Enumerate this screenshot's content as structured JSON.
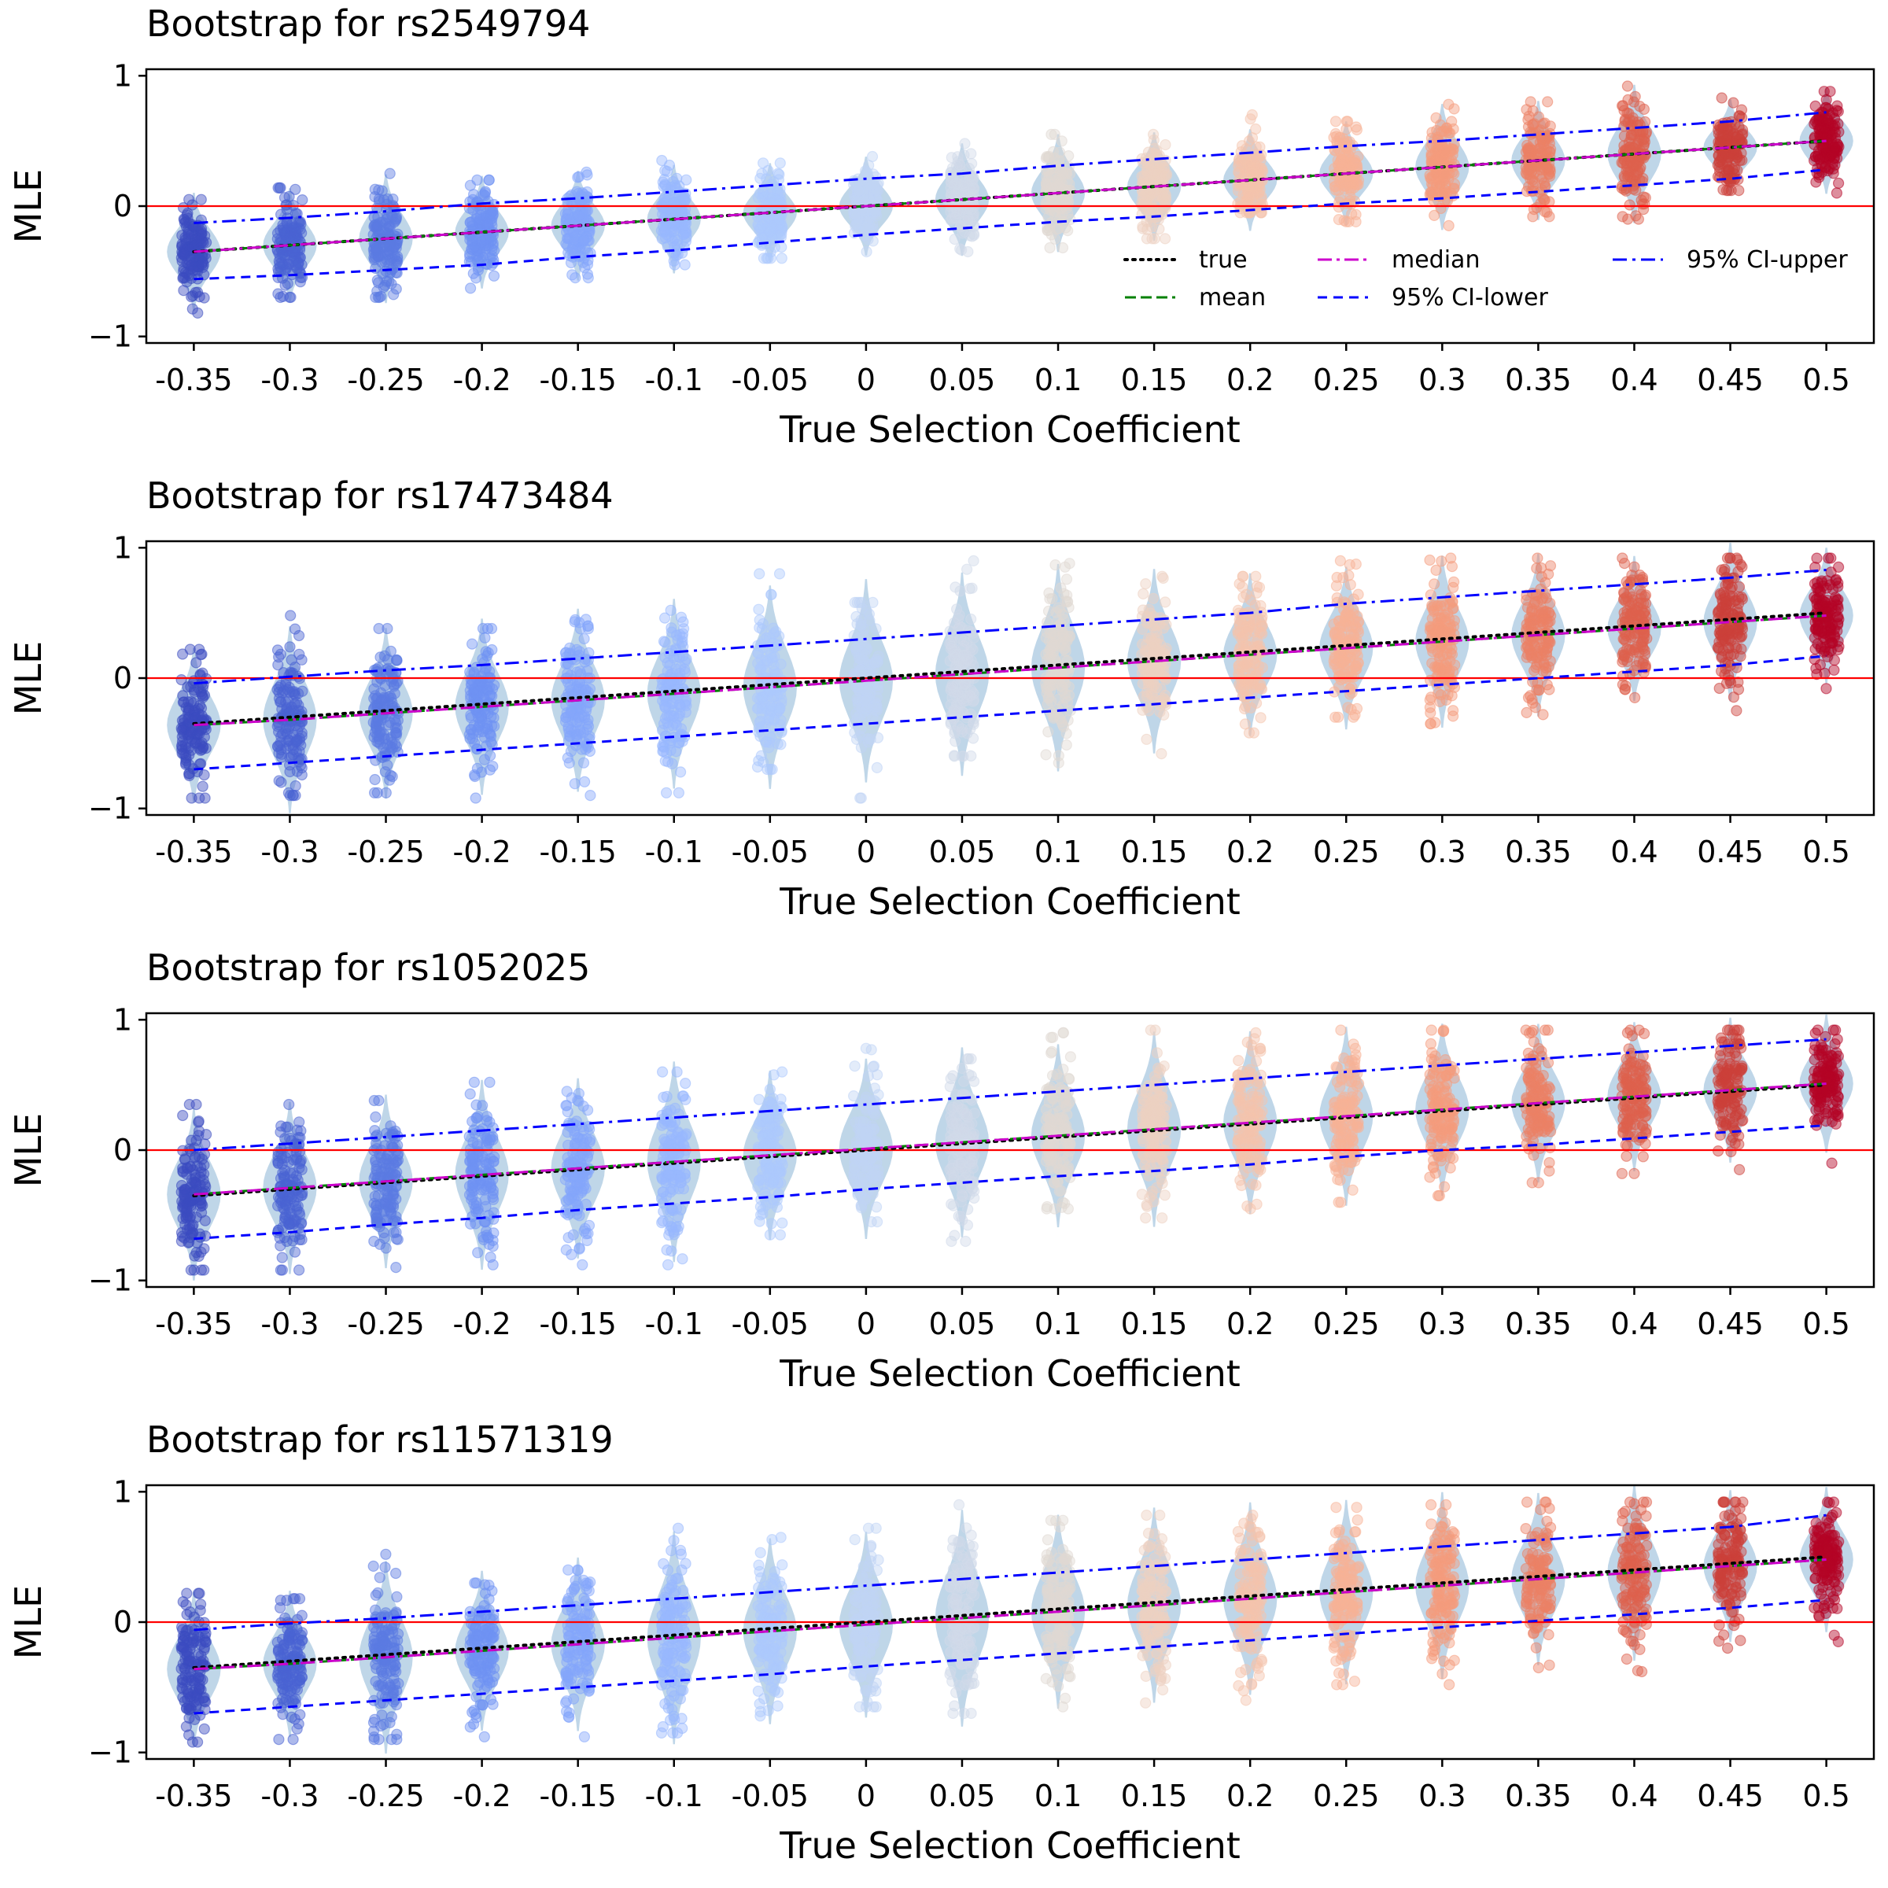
{
  "chart_data": [
    {
      "type": "scatter",
      "title": "Bootstrap for rs2549794",
      "xlabel": "True Selection Coefficient",
      "ylabel": "MLE",
      "categories": [
        "-0.35",
        "-0.3",
        "-0.25",
        "-0.2",
        "-0.15",
        "-0.1",
        "-0.05",
        "0",
        "0.05",
        "0.1",
        "0.15",
        "0.2",
        "0.25",
        "0.3",
        "0.35",
        "0.4",
        "0.45",
        "0.5"
      ],
      "ylim": [
        -1.05,
        1.05
      ],
      "yticks": [
        "−1",
        "0",
        "1"
      ],
      "reference_line_y": 0,
      "series": [
        {
          "name": "true",
          "values": [
            -0.35,
            -0.3,
            -0.25,
            -0.2,
            -0.15,
            -0.1,
            -0.05,
            0,
            0.05,
            0.1,
            0.15,
            0.2,
            0.25,
            0.3,
            0.35,
            0.4,
            0.45,
            0.5
          ]
        },
        {
          "name": "mean",
          "values": [
            -0.35,
            -0.3,
            -0.25,
            -0.2,
            -0.15,
            -0.1,
            -0.05,
            0,
            0.05,
            0.1,
            0.15,
            0.2,
            0.25,
            0.3,
            0.35,
            0.4,
            0.45,
            0.5
          ]
        },
        {
          "name": "median",
          "values": [
            -0.35,
            -0.3,
            -0.25,
            -0.2,
            -0.15,
            -0.1,
            -0.05,
            0,
            0.05,
            0.1,
            0.15,
            0.2,
            0.25,
            0.3,
            0.35,
            0.4,
            0.45,
            0.5
          ]
        },
        {
          "name": "95% CI-lower",
          "values": [
            -0.56,
            -0.53,
            -0.49,
            -0.45,
            -0.39,
            -0.34,
            -0.28,
            -0.22,
            -0.17,
            -0.12,
            -0.08,
            -0.03,
            0.02,
            0.06,
            0.11,
            0.16,
            0.21,
            0.28
          ]
        },
        {
          "name": "95% CI-upper",
          "values": [
            -0.13,
            -0.09,
            -0.04,
            0.02,
            0.06,
            0.11,
            0.16,
            0.21,
            0.25,
            0.31,
            0.36,
            0.41,
            0.46,
            0.5,
            0.55,
            0.6,
            0.65,
            0.72
          ]
        }
      ],
      "spread": [
        [
          -0.82,
          0.05
        ],
        [
          -0.7,
          0.14
        ],
        [
          -0.7,
          0.25
        ],
        [
          -0.63,
          0.2
        ],
        [
          -0.55,
          0.26
        ],
        [
          -0.45,
          0.35
        ],
        [
          -0.4,
          0.33
        ],
        [
          -0.35,
          0.38
        ],
        [
          -0.35,
          0.48
        ],
        [
          -0.32,
          0.55
        ],
        [
          -0.25,
          0.55
        ],
        [
          -0.05,
          0.7
        ],
        [
          -0.12,
          0.65
        ],
        [
          -0.15,
          0.78
        ],
        [
          -0.08,
          0.8
        ],
        [
          -0.1,
          0.92
        ],
        [
          0.12,
          0.83
        ],
        [
          0.1,
          0.88
        ]
      ],
      "legend": {
        "location": "lower-right",
        "columns": 3
      }
    },
    {
      "type": "scatter",
      "title": "Bootstrap for rs17473484",
      "xlabel": "True Selection Coefficient",
      "ylabel": "MLE",
      "categories": [
        "-0.35",
        "-0.3",
        "-0.25",
        "-0.2",
        "-0.15",
        "-0.1",
        "-0.05",
        "0",
        "0.05",
        "0.1",
        "0.15",
        "0.2",
        "0.25",
        "0.3",
        "0.35",
        "0.4",
        "0.45",
        "0.5"
      ],
      "ylim": [
        -1.05,
        1.05
      ],
      "yticks": [
        "−1",
        "0",
        "1"
      ],
      "reference_line_y": 0,
      "series": [
        {
          "name": "true",
          "values": [
            -0.35,
            -0.3,
            -0.25,
            -0.2,
            -0.15,
            -0.1,
            -0.05,
            0,
            0.05,
            0.1,
            0.15,
            0.2,
            0.25,
            0.3,
            0.35,
            0.4,
            0.45,
            0.5
          ]
        },
        {
          "name": "mean",
          "values": [
            -0.36,
            -0.32,
            -0.27,
            -0.22,
            -0.17,
            -0.12,
            -0.07,
            -0.02,
            0.03,
            0.08,
            0.13,
            0.18,
            0.23,
            0.28,
            0.33,
            0.38,
            0.43,
            0.48
          ]
        },
        {
          "name": "median",
          "values": [
            -0.36,
            -0.32,
            -0.27,
            -0.22,
            -0.17,
            -0.12,
            -0.07,
            -0.02,
            0.03,
            0.08,
            0.13,
            0.18,
            0.23,
            0.28,
            0.33,
            0.38,
            0.43,
            0.48
          ]
        },
        {
          "name": "95% CI-lower",
          "values": [
            -0.7,
            -0.65,
            -0.6,
            -0.55,
            -0.5,
            -0.45,
            -0.4,
            -0.35,
            -0.3,
            -0.25,
            -0.2,
            -0.15,
            -0.1,
            -0.05,
            0.0,
            0.05,
            0.1,
            0.17
          ]
        },
        {
          "name": "95% CI-upper",
          "values": [
            -0.04,
            0.01,
            0.06,
            0.1,
            0.15,
            0.2,
            0.25,
            0.3,
            0.35,
            0.4,
            0.45,
            0.5,
            0.57,
            0.62,
            0.67,
            0.72,
            0.77,
            0.83
          ]
        }
      ],
      "spread": [
        [
          -0.92,
          0.22
        ],
        [
          -0.9,
          0.48
        ],
        [
          -0.88,
          0.38
        ],
        [
          -0.92,
          0.38
        ],
        [
          -0.9,
          0.45
        ],
        [
          -0.88,
          0.52
        ],
        [
          -0.7,
          0.8
        ],
        [
          -0.92,
          0.58
        ],
        [
          -0.6,
          0.9
        ],
        [
          -0.65,
          0.88
        ],
        [
          -0.58,
          0.78
        ],
        [
          -0.42,
          0.78
        ],
        [
          -0.3,
          0.9
        ],
        [
          -0.35,
          0.92
        ],
        [
          -0.28,
          0.92
        ],
        [
          -0.15,
          0.92
        ],
        [
          -0.25,
          0.92
        ],
        [
          -0.08,
          0.92
        ]
      ],
      "legend": null
    },
    {
      "type": "scatter",
      "title": "Bootstrap for rs1052025",
      "xlabel": "True Selection Coefficient",
      "ylabel": "MLE",
      "categories": [
        "-0.35",
        "-0.3",
        "-0.25",
        "-0.2",
        "-0.15",
        "-0.1",
        "-0.05",
        "0",
        "0.05",
        "0.1",
        "0.15",
        "0.2",
        "0.25",
        "0.3",
        "0.35",
        "0.4",
        "0.45",
        "0.5"
      ],
      "ylim": [
        -1.05,
        1.05
      ],
      "yticks": [
        "−1",
        "0",
        "1"
      ],
      "reference_line_y": 0,
      "series": [
        {
          "name": "true",
          "values": [
            -0.35,
            -0.3,
            -0.25,
            -0.2,
            -0.15,
            -0.1,
            -0.05,
            0,
            0.05,
            0.1,
            0.15,
            0.2,
            0.25,
            0.3,
            0.35,
            0.4,
            0.45,
            0.5
          ]
        },
        {
          "name": "mean",
          "values": [
            -0.34,
            -0.29,
            -0.24,
            -0.19,
            -0.14,
            -0.09,
            -0.04,
            0.01,
            0.06,
            0.11,
            0.16,
            0.21,
            0.26,
            0.31,
            0.36,
            0.41,
            0.46,
            0.51
          ]
        },
        {
          "name": "median",
          "values": [
            -0.34,
            -0.29,
            -0.24,
            -0.19,
            -0.14,
            -0.09,
            -0.04,
            0.01,
            0.06,
            0.11,
            0.16,
            0.21,
            0.26,
            0.31,
            0.36,
            0.41,
            0.46,
            0.51
          ]
        },
        {
          "name": "95% CI-lower",
          "values": [
            -0.68,
            -0.63,
            -0.57,
            -0.52,
            -0.46,
            -0.41,
            -0.36,
            -0.3,
            -0.25,
            -0.2,
            -0.16,
            -0.11,
            -0.05,
            0.0,
            0.04,
            0.09,
            0.14,
            0.19
          ]
        },
        {
          "name": "95% CI-upper",
          "values": [
            0.0,
            0.05,
            0.1,
            0.15,
            0.2,
            0.25,
            0.3,
            0.35,
            0.4,
            0.45,
            0.5,
            0.55,
            0.6,
            0.65,
            0.7,
            0.75,
            0.8,
            0.85
          ]
        }
      ],
      "spread": [
        [
          -0.92,
          0.35
        ],
        [
          -0.92,
          0.35
        ],
        [
          -0.9,
          0.38
        ],
        [
          -0.88,
          0.52
        ],
        [
          -0.88,
          0.45
        ],
        [
          -0.88,
          0.6
        ],
        [
          -0.65,
          0.6
        ],
        [
          -0.55,
          0.78
        ],
        [
          -0.7,
          0.7
        ],
        [
          -0.45,
          0.9
        ],
        [
          -0.52,
          0.92
        ],
        [
          -0.45,
          0.9
        ],
        [
          -0.4,
          0.92
        ],
        [
          -0.35,
          0.92
        ],
        [
          -0.25,
          0.92
        ],
        [
          -0.18,
          0.92
        ],
        [
          -0.15,
          0.92
        ],
        [
          -0.1,
          0.92
        ]
      ],
      "legend": null
    },
    {
      "type": "scatter",
      "title": "Bootstrap for rs11571319",
      "xlabel": "True Selection Coefficient",
      "ylabel": "MLE",
      "categories": [
        "-0.35",
        "-0.3",
        "-0.25",
        "-0.2",
        "-0.15",
        "-0.1",
        "-0.05",
        "0",
        "0.05",
        "0.1",
        "0.15",
        "0.2",
        "0.25",
        "0.3",
        "0.35",
        "0.4",
        "0.45",
        "0.5"
      ],
      "ylim": [
        -1.05,
        1.05
      ],
      "yticks": [
        "−1",
        "0",
        "1"
      ],
      "reference_line_y": 0,
      "series": [
        {
          "name": "true",
          "values": [
            -0.35,
            -0.3,
            -0.25,
            -0.2,
            -0.15,
            -0.1,
            -0.05,
            0,
            0.05,
            0.1,
            0.15,
            0.2,
            0.25,
            0.3,
            0.35,
            0.4,
            0.45,
            0.5
          ]
        },
        {
          "name": "mean",
          "values": [
            -0.36,
            -0.32,
            -0.27,
            -0.22,
            -0.17,
            -0.12,
            -0.07,
            -0.02,
            0.03,
            0.08,
            0.13,
            0.18,
            0.23,
            0.28,
            0.33,
            0.38,
            0.43,
            0.48
          ]
        },
        {
          "name": "median",
          "values": [
            -0.36,
            -0.32,
            -0.27,
            -0.22,
            -0.17,
            -0.12,
            -0.07,
            -0.02,
            0.03,
            0.08,
            0.13,
            0.18,
            0.23,
            0.28,
            0.33,
            0.38,
            0.43,
            0.48
          ]
        },
        {
          "name": "95% CI-lower",
          "values": [
            -0.7,
            -0.65,
            -0.6,
            -0.55,
            -0.5,
            -0.45,
            -0.4,
            -0.34,
            -0.29,
            -0.24,
            -0.19,
            -0.14,
            -0.09,
            -0.04,
            0.01,
            0.06,
            0.11,
            0.17
          ]
        },
        {
          "name": "95% CI-upper",
          "values": [
            -0.06,
            -0.01,
            0.03,
            0.08,
            0.13,
            0.18,
            0.23,
            0.28,
            0.33,
            0.38,
            0.43,
            0.48,
            0.53,
            0.58,
            0.63,
            0.68,
            0.73,
            0.82
          ]
        }
      ],
      "spread": [
        [
          -0.92,
          0.22
        ],
        [
          -0.9,
          0.18
        ],
        [
          -0.9,
          0.52
        ],
        [
          -0.88,
          0.3
        ],
        [
          -0.88,
          0.4
        ],
        [
          -0.85,
          0.72
        ],
        [
          -0.72,
          0.65
        ],
        [
          -0.65,
          0.72
        ],
        [
          -0.7,
          0.9
        ],
        [
          -0.65,
          0.78
        ],
        [
          -0.62,
          0.82
        ],
        [
          -0.6,
          0.82
        ],
        [
          -0.48,
          0.88
        ],
        [
          -0.48,
          0.9
        ],
        [
          -0.35,
          0.92
        ],
        [
          -0.38,
          0.92
        ],
        [
          -0.2,
          0.92
        ],
        [
          -0.15,
          0.92
        ]
      ],
      "legend": null
    }
  ],
  "style": {
    "category_colors": [
      "#3b4cc0",
      "#4a63d3",
      "#5b7be2",
      "#6f92f3",
      "#84a6fb",
      "#98b8fe",
      "#adc9fd",
      "#c0d4f5",
      "#d1dae9",
      "#e0d9d3",
      "#edd1c2",
      "#f4c4ad",
      "#f7b296",
      "#f59c7d",
      "#ec8165",
      "#de614d",
      "#cc403a",
      "#b40426"
    ],
    "violin_color": "#a9c8e0",
    "reference_line_color": "#ff0000",
    "true_line_color": "#000000",
    "mean_line_color": "#008000",
    "median_line_color": "#cc00cc",
    "ci_lower_color": "#0000ff",
    "ci_upper_color": "#0000ff"
  }
}
